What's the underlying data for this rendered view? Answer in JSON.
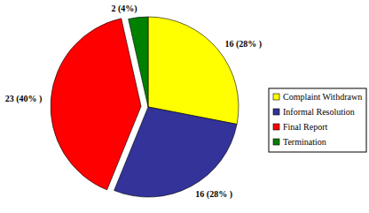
{
  "chart_data": {
    "type": "pie",
    "categories": [
      "Complaint Withdrawn",
      "Informal Resolution",
      "Final Report",
      "Termination"
    ],
    "values": [
      16,
      16,
      23,
      2
    ],
    "value_labels": [
      "16 (28% )",
      "16 (28% )",
      "23 (40% )",
      "2 (4%)"
    ],
    "colors": [
      "#ffff00",
      "#333399",
      "#ff0000",
      "#008000"
    ],
    "data_labels": true,
    "legend": "right"
  }
}
